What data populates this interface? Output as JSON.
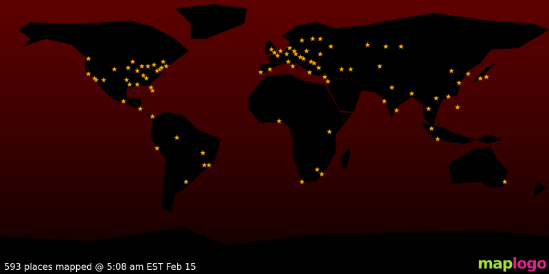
{
  "status": {
    "text": "593 places mapped @ 5:08 am EST Feb 15"
  },
  "logo": {
    "text": "maplogo",
    "part1": "map",
    "part2": "logo"
  },
  "colors": {
    "ocean_top": "#5e0000",
    "land": "#000000",
    "marker": "#ffaa00",
    "marker_stroke": "#7a4a00"
  },
  "marker_icon": "star-icon",
  "markers": [
    [
      -122,
      47
    ],
    [
      -122,
      37
    ],
    [
      -118,
      34
    ],
    [
      -117,
      33
    ],
    [
      -112,
      33
    ],
    [
      -105,
      40
    ],
    [
      -97,
      33
    ],
    [
      -95,
      30
    ],
    [
      -90,
      30
    ],
    [
      -87,
      42
    ],
    [
      -84,
      34
    ],
    [
      -83,
      42
    ],
    [
      -80,
      26
    ],
    [
      -79,
      43
    ],
    [
      -77,
      39
    ],
    [
      -75,
      40
    ],
    [
      -74,
      41
    ],
    [
      -71,
      42
    ],
    [
      -73,
      45
    ],
    [
      -93,
      45
    ],
    [
      -96,
      41
    ],
    [
      -90,
      39
    ],
    [
      -86,
      36
    ],
    [
      -81,
      28
    ],
    [
      -99,
      19
    ],
    [
      -88,
      14
    ],
    [
      -80,
      9
    ],
    [
      -47,
      -15
    ],
    [
      -43,
      -23
    ],
    [
      -46,
      -23
    ],
    [
      -58,
      -34
    ],
    [
      -77,
      -12
    ],
    [
      -64,
      -5
    ],
    [
      -3,
      40
    ],
    [
      -9,
      38
    ],
    [
      0,
      51
    ],
    [
      -2,
      53
    ],
    [
      2,
      49
    ],
    [
      4,
      52
    ],
    [
      9,
      45
    ],
    [
      12,
      42
    ],
    [
      13,
      52
    ],
    [
      8,
      50
    ],
    [
      10,
      54
    ],
    [
      14,
      50
    ],
    [
      17,
      48
    ],
    [
      19,
      47
    ],
    [
      21,
      52
    ],
    [
      24,
      45
    ],
    [
      26,
      44
    ],
    [
      30,
      50
    ],
    [
      37,
      55
    ],
    [
      30,
      60
    ],
    [
      25,
      60
    ],
    [
      18,
      59
    ],
    [
      23,
      38
    ],
    [
      29,
      41
    ],
    [
      33,
      35
    ],
    [
      35,
      32
    ],
    [
      44,
      40
    ],
    [
      50,
      40
    ],
    [
      61,
      56
    ],
    [
      73,
      55
    ],
    [
      83,
      55
    ],
    [
      69,
      42
    ],
    [
      77,
      28
    ],
    [
      72,
      19
    ],
    [
      80,
      13
    ],
    [
      90,
      24
    ],
    [
      101,
      14
    ],
    [
      106,
      21
    ],
    [
      103,
      1
    ],
    [
      107,
      -6
    ],
    [
      116,
      39
    ],
    [
      121,
      31
    ],
    [
      114,
      22
    ],
    [
      127,
      37
    ],
    [
      139,
      35
    ],
    [
      135,
      34
    ],
    [
      120,
      15
    ],
    [
      28,
      -26
    ],
    [
      18,
      -34
    ],
    [
      31,
      -29
    ],
    [
      3,
      6
    ],
    [
      36,
      -1
    ],
    [
      151,
      -34
    ]
  ]
}
